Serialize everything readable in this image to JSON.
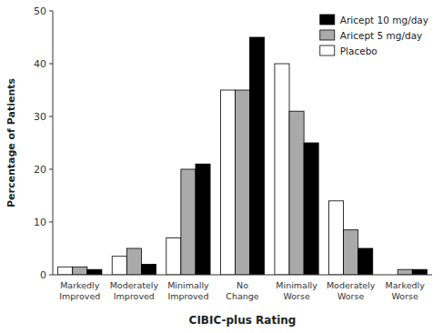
{
  "chart_data": {
    "type": "bar",
    "xlabel": "CIBIC-plus Rating",
    "ylabel": "Percentage of Patients",
    "categories": [
      "Markedly\nImproved",
      "Moderately\nImproved",
      "Minimally\nImproved",
      "No\nChange",
      "Minimally\nWorse",
      "Moderately\nWorse",
      "Markedly\nWorse"
    ],
    "series": [
      {
        "name": "Placebo",
        "color": "#ffffff",
        "values": [
          1.5,
          3.5,
          7,
          35,
          40,
          14,
          0
        ]
      },
      {
        "name": "Aricept 5 mg/day",
        "color": "#aaaaaa",
        "values": [
          1.5,
          5,
          20,
          35,
          31,
          8.5,
          1
        ]
      },
      {
        "name": "Aricept 10 mg/day",
        "color": "#000000",
        "values": [
          1,
          2,
          21,
          45,
          25,
          5,
          1
        ]
      }
    ],
    "ylim": [
      0,
      50
    ],
    "yticks": [
      0,
      10,
      20,
      30,
      40,
      50
    ],
    "legend": "upper right",
    "grid": false
  }
}
